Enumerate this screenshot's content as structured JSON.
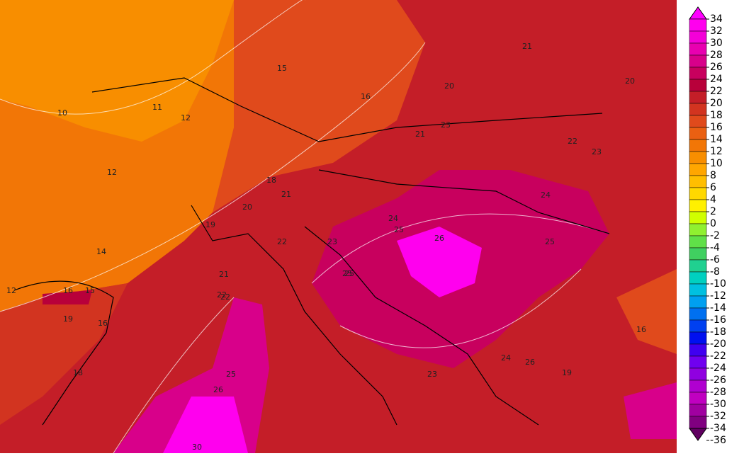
{
  "map": {
    "contour_labels": [
      "10",
      "11",
      "12",
      "12",
      "14",
      "12",
      "15",
      "16",
      "15",
      "16",
      "16",
      "19",
      "18",
      "18",
      "19",
      "20",
      "21",
      "21",
      "22",
      "23",
      "24",
      "25",
      "26",
      "25",
      "22",
      "20",
      "21",
      "22",
      "23",
      "24",
      "25",
      "26",
      "25",
      "23",
      "24",
      "26",
      "19",
      "16",
      "30",
      "21",
      "23",
      "20",
      "22",
      "25"
    ]
  },
  "colorbar": {
    "levels": [
      34,
      32,
      30,
      28,
      26,
      24,
      22,
      20,
      18,
      16,
      14,
      12,
      10,
      8,
      6,
      4,
      2,
      0,
      -2,
      -4,
      -6,
      -8,
      -10,
      -12,
      -14,
      -16,
      -18,
      -20,
      -22,
      -24,
      -26,
      -28,
      -30,
      -32,
      -34,
      -36
    ],
    "colors": [
      "#ff00ff",
      "#ff00ee",
      "#f400d8",
      "#e800b0",
      "#d8008a",
      "#c8005e",
      "#b8003a",
      "#c41e28",
      "#d23420",
      "#e04a1c",
      "#ea6012",
      "#f27606",
      "#f88e00",
      "#ffa600",
      "#ffbe00",
      "#ffd800",
      "#fff000",
      "#d0ff00",
      "#90f030",
      "#60e048",
      "#40d060",
      "#20d090",
      "#00d0c0",
      "#00c0e0",
      "#00a0f0",
      "#0070f0",
      "#0040f0",
      "#0010f0",
      "#4000f0",
      "#7000f0",
      "#9000e0",
      "#b000d0",
      "#c000c0",
      "#a000a0",
      "#800080",
      "#600060"
    ]
  }
}
